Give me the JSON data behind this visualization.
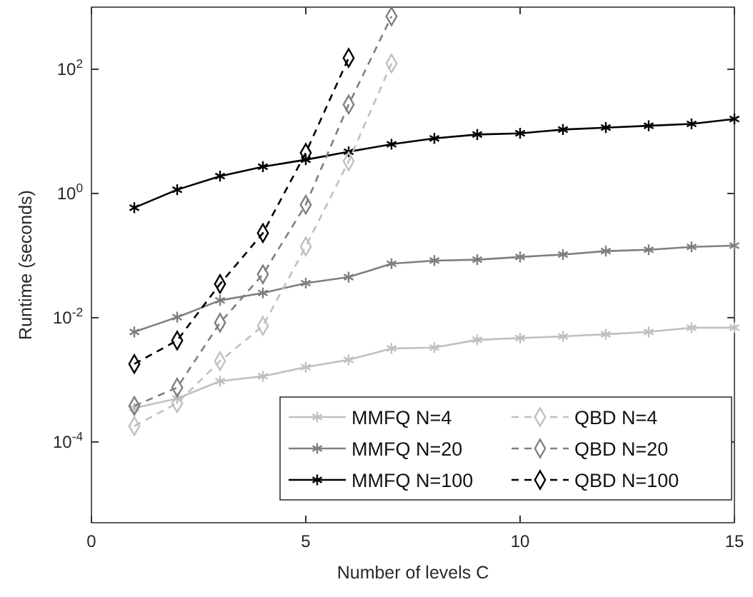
{
  "chart_data": {
    "type": "line",
    "xlabel": "Number of levels C",
    "ylabel": "Runtime (seconds)",
    "log": "y",
    "grid": false,
    "legend": "bottom right",
    "x": [
      1,
      2,
      3,
      4,
      5,
      6,
      7,
      8,
      9,
      10,
      11,
      12,
      13,
      14,
      15
    ],
    "xlim": [
      0,
      15
    ],
    "xticks": [
      0,
      5,
      10,
      15
    ],
    "ylim": [
      5e-06,
      1000
    ],
    "yticks": [
      {
        "value": 0.0001,
        "label": "10$^{-4}$"
      },
      {
        "value": 0.01,
        "label": "10$^{-2}$"
      },
      {
        "value": 1,
        "label": "10$^{0}$"
      },
      {
        "value": 100,
        "label": "10$^{2}$"
      }
    ],
    "series": [
      {
        "name": "MMFQ N=4",
        "color": "#c0c0c0",
        "marker": "cross",
        "line_style": "solid",
        "values": [
          0.00035,
          0.0005,
          0.00095,
          0.00114,
          0.0016,
          0.0021,
          0.0032,
          0.0033,
          0.0044,
          0.0047,
          0.005,
          0.0054,
          0.0059,
          0.0069,
          0.0069
        ]
      },
      {
        "name": "MMFQ N=20",
        "color": "#7f7f7f",
        "marker": "cross",
        "line_style": "solid",
        "values": [
          0.0059,
          0.0102,
          0.019,
          0.025,
          0.036,
          0.045,
          0.074,
          0.083,
          0.086,
          0.095,
          0.104,
          0.118,
          0.124,
          0.138,
          0.145
        ]
      },
      {
        "name": "MMFQ N=100",
        "color": "#000000",
        "marker": "cross",
        "line_style": "solid",
        "values": [
          0.59,
          1.15,
          1.9,
          2.7,
          3.5,
          4.7,
          6.2,
          7.7,
          8.9,
          9.3,
          10.7,
          11.5,
          12.3,
          13.2,
          15.8
        ]
      },
      {
        "name": "QBD N=4",
        "color": "#c0c0c0",
        "marker": "diamond",
        "line_style": "dashed",
        "x": [
          1,
          2,
          3,
          4,
          5,
          6,
          7
        ],
        "values": [
          0.00018,
          0.00042,
          0.002,
          0.0074,
          0.14,
          3.3,
          124
        ]
      },
      {
        "name": "QBD N=20",
        "color": "#7f7f7f",
        "marker": "diamond",
        "line_style": "dashed",
        "x": [
          1,
          2,
          3,
          4,
          5,
          6,
          7
        ],
        "values": [
          0.00038,
          0.00075,
          0.0083,
          0.05,
          0.66,
          27,
          710
        ]
      },
      {
        "name": "QBD N=100",
        "color": "#000000",
        "marker": "diamond",
        "line_style": "dashed",
        "x": [
          1,
          2,
          3,
          4,
          5,
          6
        ],
        "values": [
          0.0018,
          0.0043,
          0.035,
          0.23,
          4.5,
          152
        ]
      }
    ]
  }
}
